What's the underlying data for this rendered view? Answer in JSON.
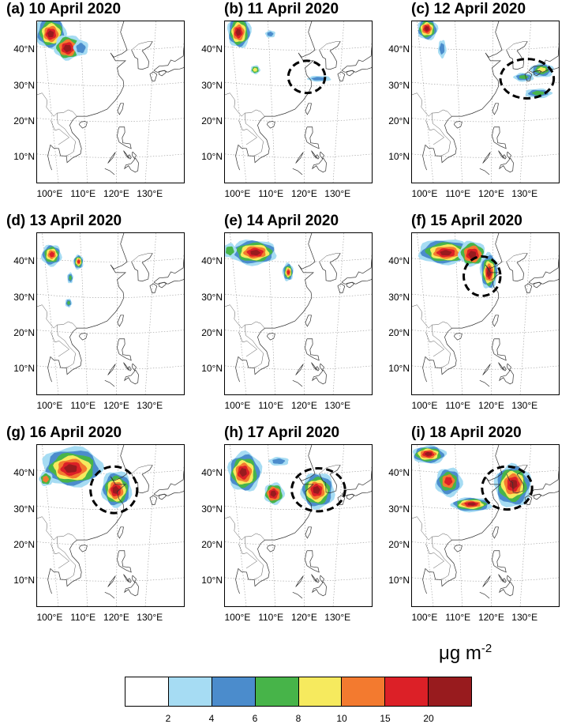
{
  "figure": {
    "panels": [
      {
        "id": "a",
        "title": "(a) 10 April 2020",
        "highlight_circle": false
      },
      {
        "id": "b",
        "title": "(b) 11 April 2020",
        "highlight_circle": true
      },
      {
        "id": "c",
        "title": "(c) 12 April 2020",
        "highlight_circle": true
      },
      {
        "id": "d",
        "title": "(d) 13 April 2020",
        "highlight_circle": false
      },
      {
        "id": "e",
        "title": "(e) 14 April 2020",
        "highlight_circle": false
      },
      {
        "id": "f",
        "title": "(f) 15 April 2020",
        "highlight_circle": true
      },
      {
        "id": "g",
        "title": "(g) 16 April 2020",
        "highlight_circle": true
      },
      {
        "id": "h",
        "title": "(h) 17 April 2020",
        "highlight_circle": true
      },
      {
        "id": "i",
        "title": "(i) 18 April 2020",
        "highlight_circle": true
      }
    ],
    "lat_labels": [
      "40°N",
      "30°N",
      "20°N",
      "10°N"
    ],
    "lon_labels": [
      "100°E",
      "110°E",
      "120°E",
      "130°E"
    ],
    "units": "μg m",
    "units_exponent": "-2",
    "colorbar": {
      "colors": [
        "#ffffff",
        "#a6dcf3",
        "#4b8ccc",
        "#47b449",
        "#f6ea5e",
        "#f37a2f",
        "#dc2027",
        "#981b1e"
      ],
      "tick_labels": [
        "2",
        "4",
        "6",
        "8",
        "10",
        "15",
        "20"
      ]
    }
  }
}
